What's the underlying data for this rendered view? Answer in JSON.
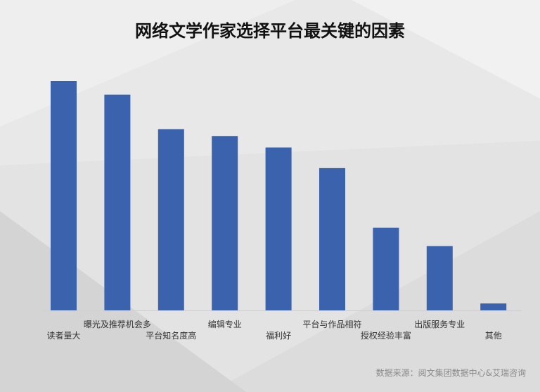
{
  "title": "网络文学作家选择平台最关键的因素",
  "source": "数据来源：阅文集团数据中心&艾瑞咨询",
  "colors": {
    "bar": "#3a62ad",
    "axis": "#d0d0d0",
    "label": "#333333"
  },
  "chart_data": {
    "type": "bar",
    "title": "网络文学作家选择平台最关键的因素",
    "categories": [
      "读者量大",
      "曝光及推荐机会多",
      "平台知名度高",
      "编辑专业",
      "福利好",
      "平台与作品相符",
      "授权经验丰富",
      "出版服务专业",
      "其他"
    ],
    "values": [
      100,
      94,
      79,
      76,
      71,
      62,
      36,
      28,
      3
    ],
    "ylim": [
      0,
      100
    ],
    "xlabel": "",
    "ylabel": "",
    "grid": false,
    "legend": "none"
  }
}
